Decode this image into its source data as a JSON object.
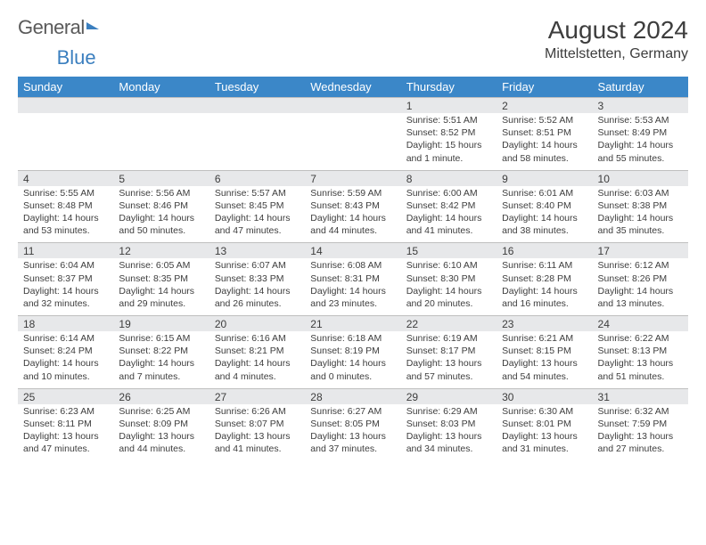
{
  "logo": {
    "part1": "General",
    "part2": "Blue"
  },
  "title": "August 2024",
  "location": "Mittelstetten, Germany",
  "header_bg": "#3b87c8",
  "daynum_bg": "#e7e8ea",
  "day_headers": [
    "Sunday",
    "Monday",
    "Tuesday",
    "Wednesday",
    "Thursday",
    "Friday",
    "Saturday"
  ],
  "weeks": [
    [
      null,
      null,
      null,
      null,
      {
        "n": "1",
        "sr": "5:51 AM",
        "ss": "8:52 PM",
        "dl": "15 hours and 1 minute."
      },
      {
        "n": "2",
        "sr": "5:52 AM",
        "ss": "8:51 PM",
        "dl": "14 hours and 58 minutes."
      },
      {
        "n": "3",
        "sr": "5:53 AM",
        "ss": "8:49 PM",
        "dl": "14 hours and 55 minutes."
      }
    ],
    [
      {
        "n": "4",
        "sr": "5:55 AM",
        "ss": "8:48 PM",
        "dl": "14 hours and 53 minutes."
      },
      {
        "n": "5",
        "sr": "5:56 AM",
        "ss": "8:46 PM",
        "dl": "14 hours and 50 minutes."
      },
      {
        "n": "6",
        "sr": "5:57 AM",
        "ss": "8:45 PM",
        "dl": "14 hours and 47 minutes."
      },
      {
        "n": "7",
        "sr": "5:59 AM",
        "ss": "8:43 PM",
        "dl": "14 hours and 44 minutes."
      },
      {
        "n": "8",
        "sr": "6:00 AM",
        "ss": "8:42 PM",
        "dl": "14 hours and 41 minutes."
      },
      {
        "n": "9",
        "sr": "6:01 AM",
        "ss": "8:40 PM",
        "dl": "14 hours and 38 minutes."
      },
      {
        "n": "10",
        "sr": "6:03 AM",
        "ss": "8:38 PM",
        "dl": "14 hours and 35 minutes."
      }
    ],
    [
      {
        "n": "11",
        "sr": "6:04 AM",
        "ss": "8:37 PM",
        "dl": "14 hours and 32 minutes."
      },
      {
        "n": "12",
        "sr": "6:05 AM",
        "ss": "8:35 PM",
        "dl": "14 hours and 29 minutes."
      },
      {
        "n": "13",
        "sr": "6:07 AM",
        "ss": "8:33 PM",
        "dl": "14 hours and 26 minutes."
      },
      {
        "n": "14",
        "sr": "6:08 AM",
        "ss": "8:31 PM",
        "dl": "14 hours and 23 minutes."
      },
      {
        "n": "15",
        "sr": "6:10 AM",
        "ss": "8:30 PM",
        "dl": "14 hours and 20 minutes."
      },
      {
        "n": "16",
        "sr": "6:11 AM",
        "ss": "8:28 PM",
        "dl": "14 hours and 16 minutes."
      },
      {
        "n": "17",
        "sr": "6:12 AM",
        "ss": "8:26 PM",
        "dl": "14 hours and 13 minutes."
      }
    ],
    [
      {
        "n": "18",
        "sr": "6:14 AM",
        "ss": "8:24 PM",
        "dl": "14 hours and 10 minutes."
      },
      {
        "n": "19",
        "sr": "6:15 AM",
        "ss": "8:22 PM",
        "dl": "14 hours and 7 minutes."
      },
      {
        "n": "20",
        "sr": "6:16 AM",
        "ss": "8:21 PM",
        "dl": "14 hours and 4 minutes."
      },
      {
        "n": "21",
        "sr": "6:18 AM",
        "ss": "8:19 PM",
        "dl": "14 hours and 0 minutes."
      },
      {
        "n": "22",
        "sr": "6:19 AM",
        "ss": "8:17 PM",
        "dl": "13 hours and 57 minutes."
      },
      {
        "n": "23",
        "sr": "6:21 AM",
        "ss": "8:15 PM",
        "dl": "13 hours and 54 minutes."
      },
      {
        "n": "24",
        "sr": "6:22 AM",
        "ss": "8:13 PM",
        "dl": "13 hours and 51 minutes."
      }
    ],
    [
      {
        "n": "25",
        "sr": "6:23 AM",
        "ss": "8:11 PM",
        "dl": "13 hours and 47 minutes."
      },
      {
        "n": "26",
        "sr": "6:25 AM",
        "ss": "8:09 PM",
        "dl": "13 hours and 44 minutes."
      },
      {
        "n": "27",
        "sr": "6:26 AM",
        "ss": "8:07 PM",
        "dl": "13 hours and 41 minutes."
      },
      {
        "n": "28",
        "sr": "6:27 AM",
        "ss": "8:05 PM",
        "dl": "13 hours and 37 minutes."
      },
      {
        "n": "29",
        "sr": "6:29 AM",
        "ss": "8:03 PM",
        "dl": "13 hours and 34 minutes."
      },
      {
        "n": "30",
        "sr": "6:30 AM",
        "ss": "8:01 PM",
        "dl": "13 hours and 31 minutes."
      },
      {
        "n": "31",
        "sr": "6:32 AM",
        "ss": "7:59 PM",
        "dl": "13 hours and 27 minutes."
      }
    ]
  ],
  "labels": {
    "sunrise": "Sunrise: ",
    "sunset": "Sunset: ",
    "daylight": "Daylight: "
  }
}
